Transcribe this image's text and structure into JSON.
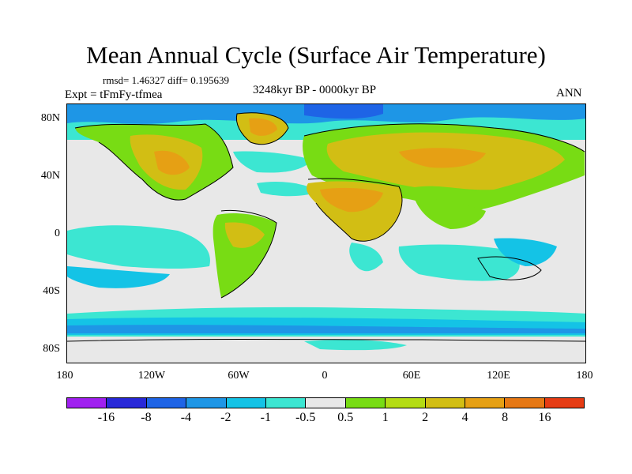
{
  "title": "Mean Annual Cycle (Surface Air Temperature)",
  "stats": "rmsd= 1.46327 diff= 0.195639",
  "experiment": "Expt = tFmFy-tfmea",
  "period": "3248kyr BP - 0000kyr BP",
  "season": "ANN",
  "y_axis_labels": [
    "80N",
    "40N",
    "0",
    "40S",
    "80S"
  ],
  "x_axis_labels": [
    "180",
    "120W",
    "60W",
    "0",
    "60E",
    "120E",
    "180"
  ],
  "colorbar": {
    "colors": [
      "#a020f0",
      "#2828d8",
      "#1e64e6",
      "#1e96e6",
      "#14c3e6",
      "#3ce6d2",
      "#e8e8e8",
      "#78dc14",
      "#b4dc14",
      "#d2be14",
      "#e6a014",
      "#e67814",
      "#e63c14"
    ],
    "labels": [
      "-16",
      "-8",
      "-4",
      "-2",
      "-1",
      "-0.5",
      "0.5",
      "1",
      "2",
      "4",
      "8",
      "16"
    ]
  }
}
